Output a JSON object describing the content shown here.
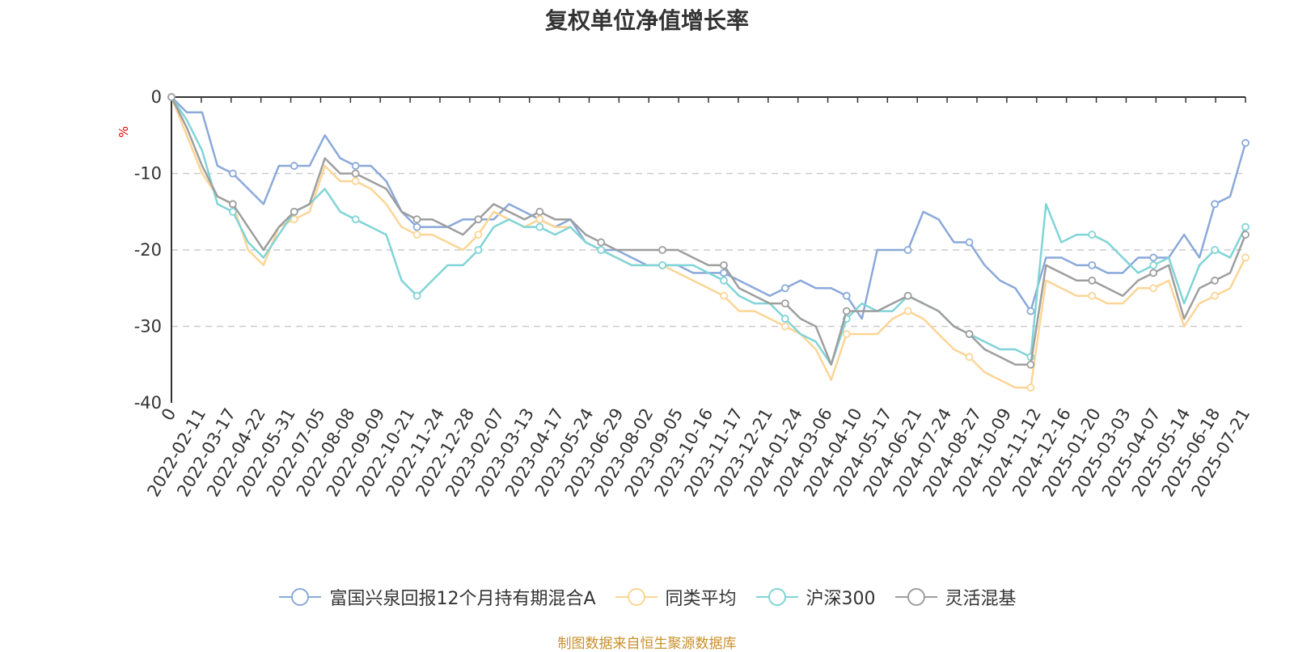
{
  "chart_data": {
    "type": "line",
    "title": "复权单位净值增长率",
    "ylabel": "%",
    "ylim": [
      -40,
      0
    ],
    "yticks": [
      0,
      -10,
      -20,
      -30,
      -40
    ],
    "grid": true,
    "legend_position": "bottom",
    "x_start_label": "0",
    "x_tick_labels": [
      "2022-02-11",
      "2022-03-17",
      "2022-04-22",
      "2022-05-31",
      "2022-07-05",
      "2022-08-08",
      "2022-09-09",
      "2022-10-21",
      "2022-11-24",
      "2022-12-28",
      "2023-02-07",
      "2023-03-13",
      "2023-04-17",
      "2023-05-24",
      "2023-06-29",
      "2023-08-02",
      "2023-09-05",
      "2023-10-16",
      "2023-11-17",
      "2023-12-21",
      "2024-01-24",
      "2024-03-06",
      "2024-04-10",
      "2024-05-17",
      "2024-06-21",
      "2024-07-24",
      "2024-08-27",
      "2024-10-09",
      "2024-11-12",
      "2024-12-16",
      "2025-01-20",
      "2025-03-03",
      "2025-04-07",
      "2025-05-14",
      "2025-06-18",
      "2025-07-21"
    ],
    "series": [
      {
        "name": "富国兴泉回报12个月持有期混合A",
        "color": "#8aa9d9",
        "values": [
          0,
          -2,
          -2,
          -9,
          -10,
          -12,
          -14,
          -9,
          -9,
          -9,
          -5,
          -8,
          -9,
          -9,
          -11,
          -15,
          -17,
          -17,
          -17,
          -16,
          -16,
          -16,
          -14,
          -15,
          -16,
          -17,
          -16,
          -19,
          -20,
          -20,
          -21,
          -22,
          -22,
          -22,
          -23,
          -23,
          -23,
          -24,
          -25,
          -26,
          -25,
          -24,
          -25,
          -25,
          -26,
          -29,
          -20,
          -20,
          -20,
          -15,
          -16,
          -19,
          -19,
          -22,
          -24,
          -25,
          -28,
          -21,
          -21,
          -22,
          -22,
          -23,
          -23,
          -21,
          -21,
          -21,
          -18,
          -21,
          -14,
          -13,
          -6
        ]
      },
      {
        "name": "同类平均",
        "color": "#fcd596",
        "values": [
          0,
          -5,
          -10,
          -13,
          -14,
          -20,
          -22,
          -17,
          -16,
          -15,
          -9,
          -11,
          -11,
          -12,
          -14,
          -17,
          -18,
          -18,
          -19,
          -20,
          -18,
          -15,
          -16,
          -17,
          -16,
          -17,
          -17,
          -19,
          -20,
          -21,
          -22,
          -22,
          -22,
          -23,
          -24,
          -25,
          -26,
          -28,
          -28,
          -29,
          -30,
          -31,
          -33,
          -37,
          -31,
          -31,
          -31,
          -29,
          -28,
          -29,
          -31,
          -33,
          -34,
          -36,
          -37,
          -38,
          -38,
          -24,
          -25,
          -26,
          -26,
          -27,
          -27,
          -25,
          -25,
          -24,
          -30,
          -27,
          -26,
          -25,
          -21
        ]
      },
      {
        "name": "沪深300",
        "color": "#81d4d7",
        "values": [
          0,
          -3,
          -7,
          -14,
          -15,
          -19,
          -21,
          -18,
          -15,
          -14,
          -12,
          -15,
          -16,
          -17,
          -18,
          -24,
          -26,
          -24,
          -22,
          -22,
          -20,
          -17,
          -16,
          -17,
          -17,
          -18,
          -17,
          -19,
          -20,
          -21,
          -22,
          -22,
          -22,
          -22,
          -22,
          -23,
          -24,
          -26,
          -27,
          -27,
          -29,
          -31,
          -32,
          -35,
          -29,
          -27,
          -28,
          -28,
          -26,
          -27,
          -28,
          -30,
          -31,
          -32,
          -33,
          -33,
          -34,
          -14,
          -19,
          -18,
          -18,
          -19,
          -21,
          -23,
          -22,
          -21,
          -27,
          -22,
          -20,
          -21,
          -17
        ]
      },
      {
        "name": "灵活混基",
        "color": "#9e9e9e",
        "values": [
          0,
          -4,
          -9,
          -13,
          -14,
          -17,
          -20,
          -17,
          -15,
          -14,
          -8,
          -10,
          -10,
          -11,
          -12,
          -15,
          -16,
          -16,
          -17,
          -18,
          -16,
          -14,
          -15,
          -16,
          -15,
          -16,
          -16,
          -18,
          -19,
          -20,
          -20,
          -20,
          -20,
          -20,
          -21,
          -22,
          -22,
          -25,
          -26,
          -27,
          -27,
          -29,
          -30,
          -35,
          -28,
          -28,
          -28,
          -27,
          -26,
          -27,
          -28,
          -30,
          -31,
          -33,
          -34,
          -35,
          -35,
          -22,
          -23,
          -24,
          -24,
          -25,
          -26,
          -24,
          -23,
          -22,
          -29,
          -25,
          -24,
          -23,
          -18
        ]
      }
    ]
  },
  "legend": {
    "items": [
      "富国兴泉回报12个月持有期混合A",
      "同类平均",
      "沪深300",
      "灵活混基"
    ]
  },
  "footer": {
    "source_note": "制图数据来自恒生聚源数据库"
  }
}
